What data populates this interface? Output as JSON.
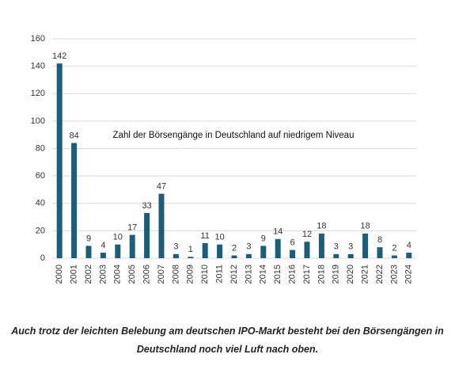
{
  "chart_data": {
    "type": "bar",
    "annotation": "Zahl der Börsengänge in Deutschland auf niedrigem Niveau",
    "caption": "Auch trotz der leichten Belebung am deutschen IPO-Markt besteht bei den Börsengängen in Deutschland noch viel Luft nach oben.",
    "categories": [
      "2000",
      "2001",
      "2002",
      "2003",
      "2004",
      "2005",
      "2006",
      "2007",
      "2008",
      "2009",
      "2010",
      "2011",
      "2012",
      "2013",
      "2014",
      "2015",
      "2016",
      "2017",
      "2018",
      "2019",
      "2020",
      "2021",
      "2022",
      "2023",
      "2024"
    ],
    "values": [
      142,
      84,
      9,
      4,
      10,
      17,
      33,
      47,
      3,
      1,
      11,
      10,
      2,
      3,
      9,
      14,
      6,
      12,
      18,
      3,
      3,
      18,
      8,
      2,
      4
    ],
    "color": "#1c5d7a",
    "ylim": [
      0,
      160
    ],
    "yticks": [
      0,
      20,
      40,
      60,
      80,
      100,
      120,
      140,
      160
    ],
    "grid": true
  }
}
